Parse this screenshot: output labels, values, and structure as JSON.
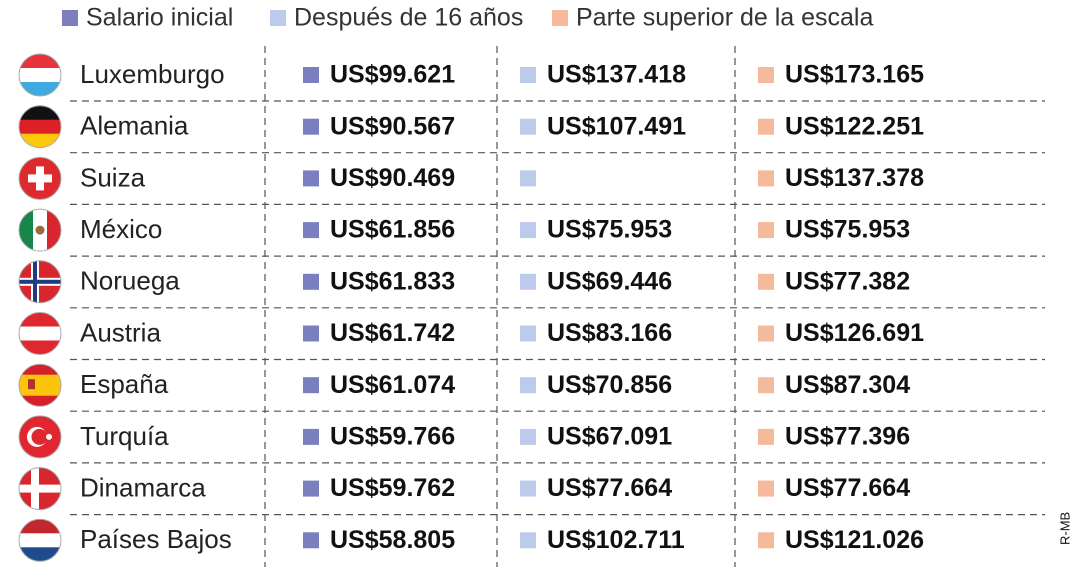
{
  "legend": [
    "Salario inicial",
    "Después de 16 años",
    "Parte superior de la escala"
  ],
  "rows": [
    {
      "country": "Luxemburgo",
      "values": [
        "US$99.621",
        "US$137.418",
        "US$173.165"
      ]
    },
    {
      "country": "Alemania",
      "values": [
        "US$90.567",
        "US$107.491",
        "US$122.251"
      ]
    },
    {
      "country": "Suiza",
      "values": [
        "US$90.469",
        null,
        "US$137.378"
      ]
    },
    {
      "country": "México",
      "values": [
        "US$61.856",
        "US$75.953",
        "US$75.953"
      ]
    },
    {
      "country": "Noruega",
      "values": [
        "US$61.833",
        "US$69.446",
        "US$77.382"
      ]
    },
    {
      "country": "Austria",
      "values": [
        "US$61.742",
        "US$83.166",
        "US$126.691"
      ]
    },
    {
      "country": "España",
      "values": [
        "US$61.074",
        "US$70.856",
        "US$87.304"
      ]
    },
    {
      "country": "Turquía",
      "values": [
        "US$59.766",
        "US$67.091",
        "US$77.396"
      ]
    },
    {
      "country": "Dinamarca",
      "values": [
        "US$59.762",
        "US$77.664",
        "US$77.664"
      ]
    },
    {
      "country": "Países Bajos",
      "values": [
        "US$58.805",
        "US$102.711",
        "US$121.026"
      ]
    }
  ],
  "credit": "R-MB"
}
